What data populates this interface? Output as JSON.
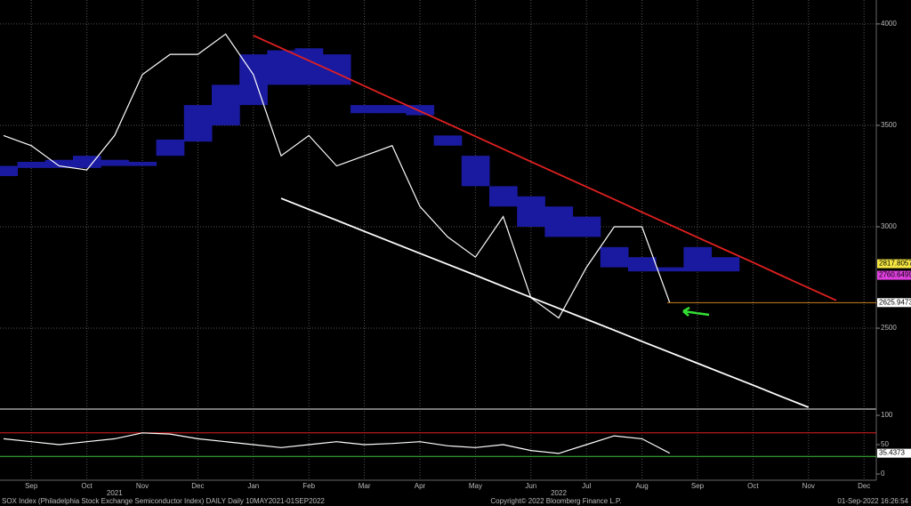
{
  "chart_data": [
    {
      "type": "line",
      "categories": [
        null,
        "Sep",
        null,
        "Oct",
        null,
        "Nov",
        null,
        "Dec",
        null,
        "Jan",
        null,
        "Feb",
        null,
        "Mar",
        null,
        "Apr",
        null,
        "May",
        null,
        "Jun",
        null,
        "Jul",
        null,
        "Aug",
        null,
        "Sep",
        null,
        "Oct",
        null,
        "Nov",
        null,
        "Dec"
      ],
      "year_categories": [
        null,
        null,
        null,
        null,
        "2021",
        null,
        null,
        null,
        null,
        null,
        null,
        null,
        null,
        null,
        null,
        null,
        null,
        null,
        null,
        null,
        "2022",
        null,
        null,
        null,
        null,
        null,
        null,
        null,
        null,
        null,
        null,
        null
      ],
      "ylim": [
        2110,
        4118
      ],
      "yticks": [
        2500,
        3000,
        3500,
        4000
      ],
      "grid": true,
      "cloud": {
        "color": "#1a1aa0",
        "top": [
          3300,
          3320,
          3330,
          3350,
          3330,
          3320,
          3430,
          3600,
          3700,
          3850,
          3870,
          3880,
          3850,
          3600,
          3600,
          3600,
          3450,
          3350,
          3200,
          3150,
          3100,
          3050,
          2900,
          2850,
          2800,
          2900,
          2850,
          null,
          null,
          null,
          null,
          null
        ],
        "bottom": [
          3250,
          3290,
          3290,
          3290,
          3300,
          3300,
          3350,
          3420,
          3500,
          3600,
          3700,
          3700,
          3700,
          3560,
          3560,
          3550,
          3400,
          3200,
          3100,
          3000,
          2950,
          2950,
          2800,
          2780,
          2780,
          2780,
          2780,
          null,
          null,
          null,
          null,
          null
        ]
      },
      "series": [
        {
          "color": "#ffffff",
          "values": [
            3450,
            3400,
            3300,
            3280,
            3450,
            3750,
            3850,
            3850,
            3950,
            3750,
            3350,
            3450,
            3300,
            3350,
            3400,
            3100,
            2950,
            2850,
            3050,
            2650,
            2550,
            2800,
            3000,
            3000,
            2626,
            null,
            null,
            null,
            null,
            null,
            null,
            null
          ]
        },
        {
          "color": "#e02020",
          "values": [
            null,
            null,
            null,
            null,
            null,
            null,
            null,
            null,
            null,
            3943,
            3881,
            3819,
            3757,
            3694,
            3632,
            3570,
            3508,
            3446,
            3383,
            3321,
            3259,
            3197,
            3135,
            3072,
            3010,
            2948,
            2886,
            2824,
            2761,
            2699,
            2637,
            null
          ]
        },
        {
          "color": "#ffffff",
          "values": [
            null,
            null,
            null,
            null,
            null,
            null,
            null,
            null,
            null,
            null,
            3140,
            3086,
            3032,
            2977,
            2923,
            2869,
            2815,
            2761,
            2706,
            2652,
            2598,
            2544,
            2490,
            2435,
            2381,
            2327,
            2273,
            2219,
            2164,
            2110,
            null,
            null
          ]
        }
      ],
      "markers": [
        {
          "value": 2817.8057,
          "color": "#f5e642"
        },
        {
          "value": 2760.6499,
          "color": "#e040e0"
        },
        {
          "value": 2625.9473,
          "color": "#ffffff",
          "line_color": "#d08020"
        }
      ]
    },
    {
      "type": "line",
      "ylim": [
        -10.6,
        107.6
      ],
      "yticks": [
        0,
        50,
        100
      ],
      "levels": [
        {
          "value": 70,
          "color": "#e02020"
        },
        {
          "value": 30,
          "color": "#3fbf3f"
        }
      ],
      "series": [
        {
          "color": "#ffffff",
          "values": [
            60,
            55,
            50,
            55,
            60,
            70,
            68,
            60,
            55,
            50,
            45,
            50,
            55,
            50,
            52,
            55,
            48,
            45,
            50,
            40,
            35,
            50,
            65,
            60,
            35.4373,
            null,
            null,
            null,
            null,
            null,
            null,
            null
          ]
        }
      ],
      "markers": [
        {
          "value": 35.4373,
          "color": "#ffffff"
        }
      ]
    }
  ],
  "footer": {
    "left": "SOX Index (Philadelphia Stock Exchange Semiconductor Index) DAILY  Daily 10MAY2021-01SEP2022",
    "center": "Copyright© 2022 Bloomberg Finance L.P.",
    "right": "01-Sep-2022 16:26:54"
  }
}
